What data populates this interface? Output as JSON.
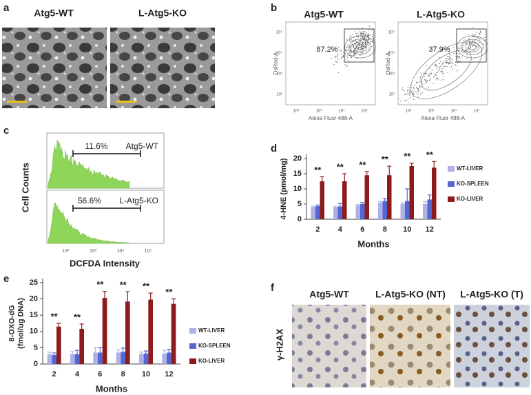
{
  "panels": {
    "a": {
      "label": "a",
      "titles": [
        "Atg5-WT",
        "L-Atg5-KO"
      ]
    },
    "b": {
      "label": "b",
      "titles": [
        "Atg5-WT",
        "L-Atg5-KO"
      ],
      "gates": [
        "87.2%",
        "37.9%"
      ],
      "y_label": "DsRed-A",
      "x_label": "Alexa Fluor 488-A",
      "ticks": [
        "10²",
        "10³",
        "10⁴",
        "10⁵"
      ]
    },
    "c": {
      "label": "c",
      "samples": [
        "Atg5-WT",
        "L-Atg5-KO"
      ],
      "gates": [
        "11.6%",
        "56.6%"
      ],
      "y_label": "Cell Counts",
      "x_label": "DCFDA Intensity",
      "ticks": [
        "10²",
        "10³",
        "10⁴",
        "10⁵"
      ]
    },
    "d": {
      "label": "d"
    },
    "e": {
      "label": "e"
    },
    "f": {
      "label": "f",
      "titles": [
        "Atg5-WT",
        "L-Atg5-KO (NT)",
        "L-Atg5-KO (T)"
      ],
      "y_label": "γ-H2AX"
    }
  },
  "chart_data": [
    {
      "type": "bar",
      "y_label": "4-HNE  (pmol/mg)",
      "x_label": "Months",
      "categories": [
        "2",
        "4",
        "6",
        "8",
        "10",
        "12"
      ],
      "series": [
        {
          "name": "WT-LIVER",
          "color": "#aeb0e8",
          "values": [
            4,
            4,
            4.5,
            5.5,
            5,
            5
          ],
          "errors": [
            0.3,
            0.3,
            0.3,
            0.4,
            0.4,
            0.8
          ]
        },
        {
          "name": "KO-SPLEEN",
          "color": "#5466cf",
          "values": [
            4.3,
            4.2,
            5,
            6,
            6,
            6.5
          ],
          "errors": [
            0.4,
            1,
            0.5,
            0.8,
            4,
            1.5
          ]
        },
        {
          "name": "KO-LIVER",
          "color": "#8e1b1b",
          "values": [
            12.5,
            12.5,
            14.5,
            14.5,
            17.5,
            17
          ],
          "errors": [
            1.5,
            2.5,
            1.2,
            3,
            1,
            2
          ]
        }
      ],
      "annotations": [
        "**",
        "**",
        "**",
        "**",
        "**",
        "**"
      ],
      "ylim": [
        0,
        20
      ],
      "yticks": [
        0,
        5,
        10,
        15,
        20
      ]
    },
    {
      "type": "bar",
      "y_label": "8-OXO-dG\n(fmol/ug DNA)",
      "x_label": "Months",
      "categories": [
        "2",
        "4",
        "6",
        "8",
        "10",
        "12"
      ],
      "series": [
        {
          "name": "WT-LIVER",
          "color": "#aeb0e8",
          "values": [
            3,
            3,
            3.5,
            3.5,
            3,
            3.2
          ],
          "errors": [
            0.6,
            0.8,
            1.5,
            0.8,
            0.7,
            1
          ]
        },
        {
          "name": "KO-SPLEEN",
          "color": "#5466cf",
          "values": [
            2.8,
            3,
            3.5,
            3.7,
            3.2,
            3.5
          ],
          "errors": [
            0.6,
            1.2,
            1.5,
            1.2,
            0.8,
            1
          ]
        },
        {
          "name": "KO-LIVER",
          "color": "#8e1b1b",
          "values": [
            11.5,
            10.8,
            20.3,
            19.2,
            19.8,
            18.5
          ],
          "errors": [
            1,
            1.5,
            2,
            3,
            2,
            1.5
          ]
        }
      ],
      "annotations": [
        "**",
        "**",
        "**",
        "**",
        "**",
        "**"
      ],
      "ylim": [
        0,
        25
      ],
      "yticks": [
        0,
        5,
        10,
        15,
        20,
        25
      ]
    }
  ]
}
